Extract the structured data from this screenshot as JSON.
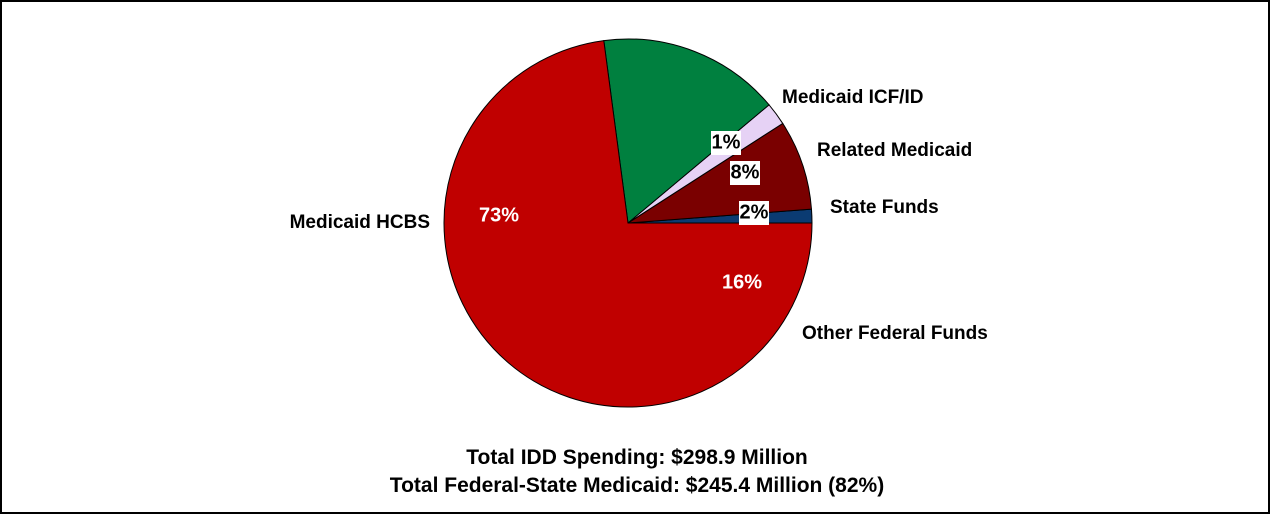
{
  "chart_data": {
    "type": "pie",
    "slices": [
      {
        "label": "Medicaid ICF/ID",
        "percent_label": "1%",
        "value": 1.2,
        "color": "#0b3b72",
        "pct_style": "boxed"
      },
      {
        "label": "Related Medicaid",
        "percent_label": "8%",
        "value": 7.9,
        "color": "#7a0000",
        "pct_style": "boxed"
      },
      {
        "label": "State Funds",
        "percent_label": "2%",
        "value": 2.0,
        "color": "#e6d2f5",
        "pct_style": "boxed"
      },
      {
        "label": "Other Federal Funds",
        "percent_label": "16%",
        "value": 16.0,
        "color": "#00803f",
        "pct_style": "white"
      },
      {
        "label": "Medicaid HCBS",
        "percent_label": "73%",
        "value": 72.9,
        "color": "#c00000",
        "pct_style": "white"
      }
    ],
    "legend": "none"
  },
  "footer": {
    "line1": "Total IDD Spending: $298.9 Million",
    "line2": "Total Federal-State Medicaid: $245.4 Million (82%)"
  }
}
